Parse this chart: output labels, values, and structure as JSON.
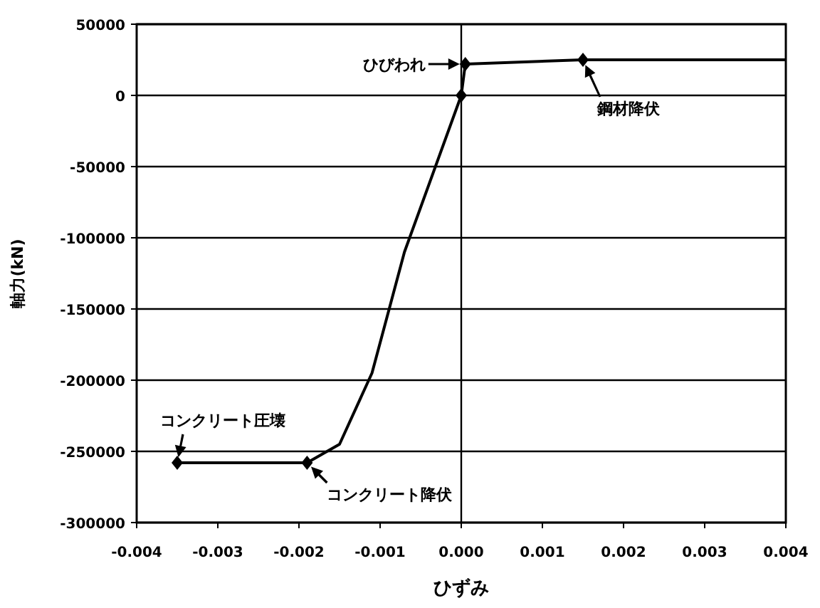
{
  "chart_data": {
    "type": "line",
    "xlabel": "ひずみ",
    "ylabel": "軸力(kN)",
    "xlim": [
      -0.004,
      0.004
    ],
    "xticks": [
      {
        "value": -0.004,
        "label": "-0.004"
      },
      {
        "value": -0.003,
        "label": "-0.003"
      },
      {
        "value": -0.002,
        "label": "-0.002"
      },
      {
        "value": -0.001,
        "label": "-0.001"
      },
      {
        "value": 0,
        "label": "0.000"
      },
      {
        "value": 0.001,
        "label": "0.001"
      },
      {
        "value": 0.002,
        "label": "0.002"
      },
      {
        "value": 0.003,
        "label": "0.003"
      },
      {
        "value": 0.004,
        "label": "0.004"
      }
    ],
    "ylim": [
      -300000,
      50000
    ],
    "yticks": [
      -300000,
      -250000,
      -200000,
      -150000,
      -100000,
      -50000,
      0,
      50000
    ],
    "grid": "y",
    "ref_lines": [
      {
        "axis": "x",
        "value": 0,
        "color": "#000000"
      }
    ],
    "series": [
      {
        "type": "line",
        "color": "#000000",
        "marker": "none",
        "x": [
          -0.0035,
          -0.0019,
          -0.0015,
          -0.0011,
          -0.0007,
          0,
          5e-05,
          0.0015,
          0.004
        ],
        "values": [
          -258000,
          -258000,
          -245000,
          -195000,
          -110000,
          0,
          22000,
          25000,
          25000
        ]
      },
      {
        "type": "scatter",
        "color": "#000000",
        "marker": "diamond",
        "x": [
          -0.0035,
          -0.0019,
          0,
          5e-05,
          0.0015
        ],
        "values": [
          -258000,
          -258000,
          0,
          22000,
          25000
        ]
      }
    ],
    "annotations": [
      {
        "text": "ひびわれ",
        "x": 5e-05,
        "y": 22000
      },
      {
        "text": "鋼材降伏",
        "x": 0.0015,
        "y": 25000
      },
      {
        "text": "コンクリート圧壊",
        "x": -0.0035,
        "y": -258000
      },
      {
        "text": "コンクリート降伏",
        "x": -0.0019,
        "y": -258000
      }
    ]
  }
}
